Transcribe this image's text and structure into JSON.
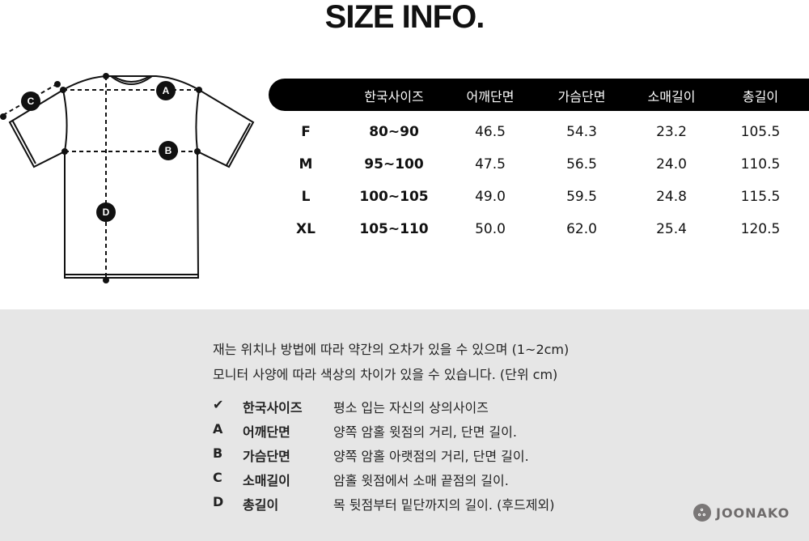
{
  "title": "SIZE INFO.",
  "diagram": {
    "markers": [
      "A",
      "B",
      "C",
      "D"
    ]
  },
  "table": {
    "headers": [
      "",
      "한국사이즈",
      "어깨단면",
      "가슴단면",
      "소매길이",
      "총길이"
    ],
    "rows": [
      [
        "F",
        "80~90",
        "46.5",
        "54.3",
        "23.2",
        "105.5"
      ],
      [
        "M",
        "95~100",
        "47.5",
        "56.5",
        "24.0",
        "110.5"
      ],
      [
        "L",
        "100~105",
        "49.0",
        "59.5",
        "24.8",
        "115.5"
      ],
      [
        "XL",
        "105~110",
        "50.0",
        "62.0",
        "25.4",
        "120.5"
      ]
    ]
  },
  "notes": [
    "재는 위치나 방법에 따라 약간의 오차가 있을 수 있으며 (1~2cm)",
    "모니터 사양에 따라 색상의 차이가 있을 수 있습니다. (단위 cm)"
  ],
  "legend": [
    {
      "key": "✔",
      "term": "한국사이즈",
      "desc": "평소 입는 자신의 상의사이즈"
    },
    {
      "key": "A",
      "term": "어깨단면",
      "desc": "양쪽 암홀 윗점의 거리, 단면 길이."
    },
    {
      "key": "B",
      "term": "가슴단면",
      "desc": "양쪽 암홀 아랫점의 거리, 단면 길이."
    },
    {
      "key": "C",
      "term": "소매길이",
      "desc": "암홀 윗점에서 소매 끝점의 길이."
    },
    {
      "key": "D",
      "term": "총길이",
      "desc": "목 뒷점부터 밑단까지의 길이. (후드제외)"
    }
  ],
  "brand": {
    "name": "JOONAKO",
    "logo_icon": "knot-icon"
  }
}
